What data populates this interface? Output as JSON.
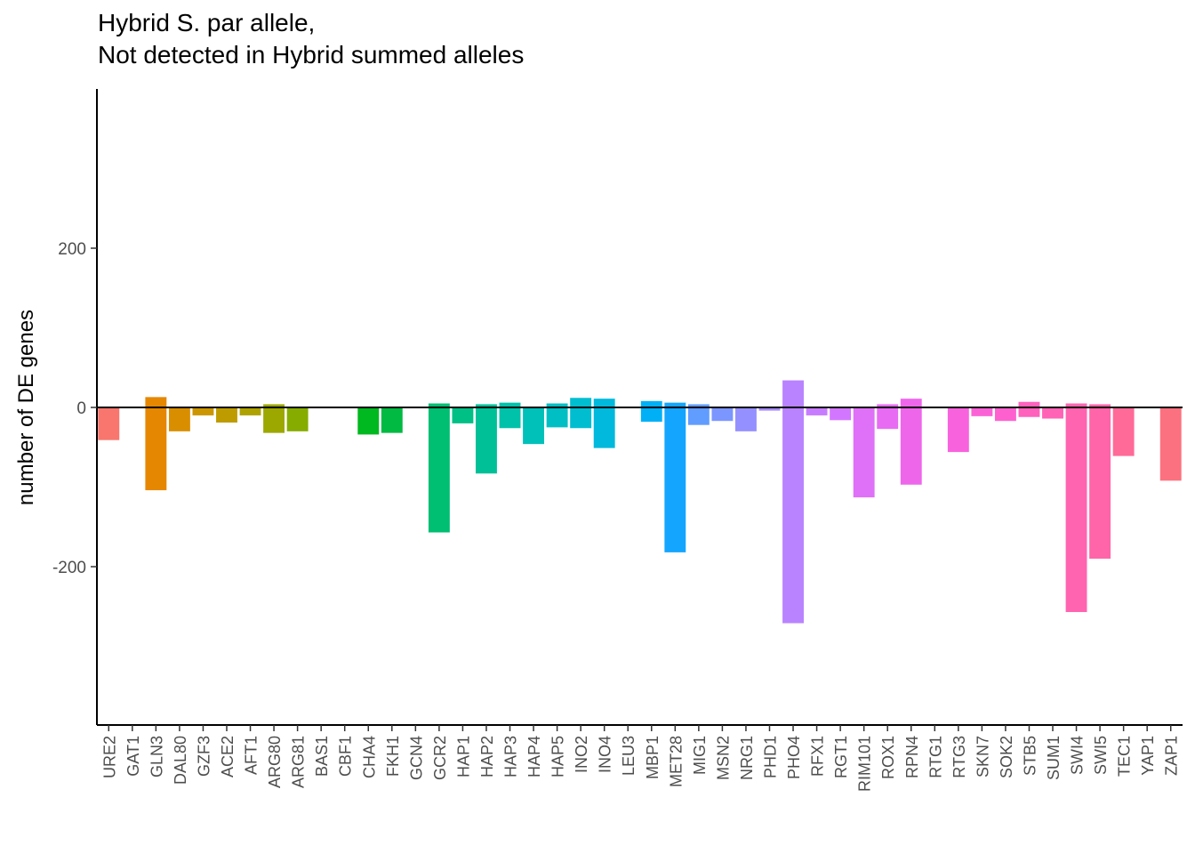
{
  "chart_data": {
    "type": "bar",
    "title_line1": "Hybrid S. par allele,",
    "title_line2": "Not detected in Hybrid summed alleles",
    "ylabel": "number of DE genes",
    "xlabel": "",
    "ylim": [
      -400,
      400
    ],
    "yticks": [
      -200,
      0,
      200
    ],
    "ytick_labels": [
      "-200",
      "0",
      "200"
    ],
    "categories": [
      "URE2",
      "GAT1",
      "GLN3",
      "DAL80",
      "GZF3",
      "ACE2",
      "AFT1",
      "ARG80",
      "ARG81",
      "BAS1",
      "CBF1",
      "CHA4",
      "FKH1",
      "GCN4",
      "GCR2",
      "HAP1",
      "HAP2",
      "HAP3",
      "HAP4",
      "HAP5",
      "INO2",
      "INO4",
      "LEU3",
      "MBP1",
      "MET28",
      "MIG1",
      "MSN2",
      "NRG1",
      "PHD1",
      "PHO4",
      "RFX1",
      "RGT1",
      "RIM101",
      "ROX1",
      "RPN4",
      "RTG1",
      "RTG3",
      "SKN7",
      "SOK2",
      "STB5",
      "SUM1",
      "SWI4",
      "SWI5",
      "TEC1",
      "YAP1",
      "ZAP1"
    ],
    "series": [
      {
        "values": [
          0,
          0,
          13,
          0,
          0,
          0,
          0,
          4,
          0,
          0,
          0,
          0,
          0,
          0,
          5,
          0,
          4,
          6,
          0,
          5,
          12,
          11,
          0,
          8,
          6,
          4,
          0,
          0,
          0,
          34,
          0,
          0,
          0,
          4,
          11,
          0,
          0,
          0,
          0,
          7,
          0,
          5,
          4,
          0,
          0,
          0
        ]
      },
      {
        "values": [
          -41,
          0,
          -104,
          -30,
          -10,
          -19,
          -10,
          -32,
          -30,
          0,
          0,
          -34,
          -32,
          0,
          -157,
          -20,
          -83,
          -26,
          -46,
          -25,
          -26,
          -51,
          0,
          -18,
          -182,
          -22,
          -17,
          -30,
          -4,
          -271,
          -10,
          -16,
          -113,
          -27,
          -97,
          0,
          -56,
          -11,
          -17,
          -12,
          -14,
          -257,
          -190,
          -61,
          0,
          -92
        ]
      }
    ],
    "colors": [
      "#F8766D",
      "#EF7F49",
      "#E58700",
      "#D98E00",
      "#CC9600",
      "#BE9C00",
      "#AEA200",
      "#9CA700",
      "#86AC00",
      "#6BB100",
      "#45B500",
      "#00B81F",
      "#00BA42",
      "#00BC5C",
      "#00BE72",
      "#00C086",
      "#00C098",
      "#00C1AA",
      "#00C0BA",
      "#00BFC4",
      "#00BDD0",
      "#00B9DC",
      "#00B5E7",
      "#00B0F6",
      "#14A5FF",
      "#619CFF",
      "#7C96FF",
      "#9590FF",
      "#A68AFF",
      "#B983FF",
      "#C77CFF",
      "#D376FF",
      "#DF70F8",
      "#E76BF3",
      "#EE67EB",
      "#F463E2",
      "#F962DD",
      "#FB61D7",
      "#FE61CF",
      "#FF62BC",
      "#FF63B6",
      "#FF64B0",
      "#FF65A8",
      "#FF6A98",
      "#FF6C91",
      "#FC717F"
    ]
  }
}
